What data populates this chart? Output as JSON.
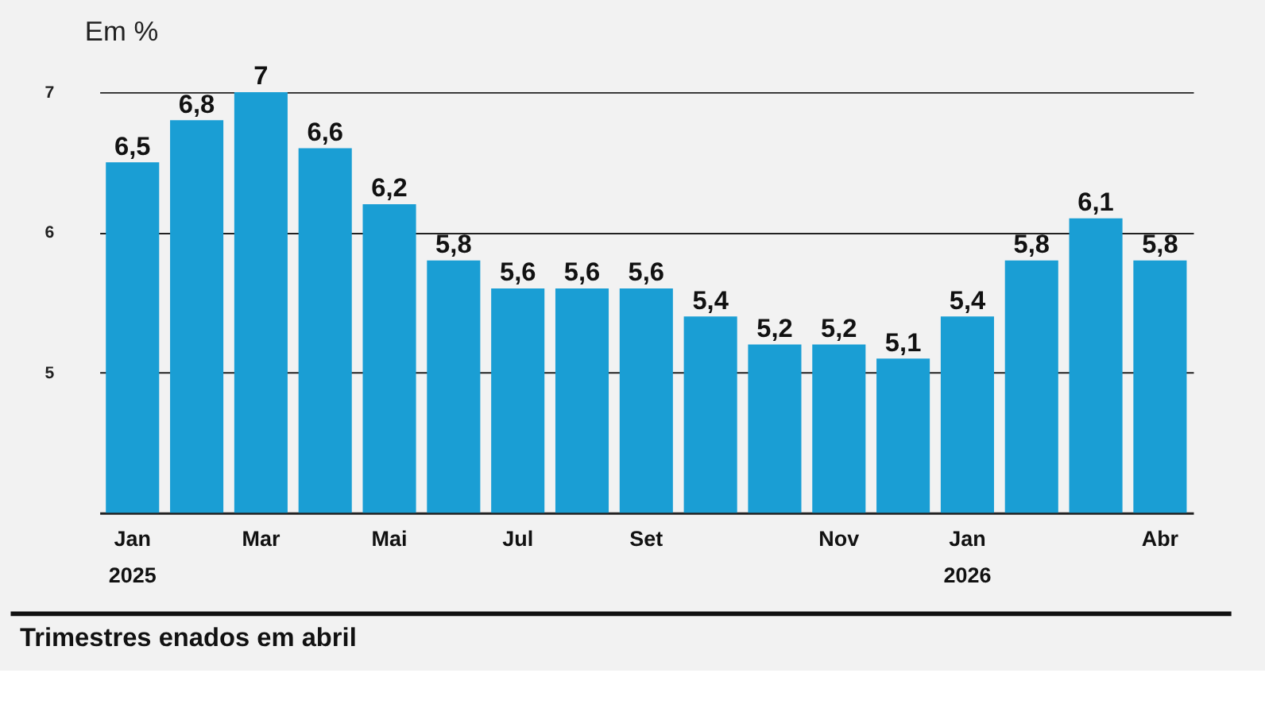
{
  "chart_data": {
    "type": "bar",
    "ylabel": "Em %",
    "categories": [
      "Jan 2025",
      null,
      "Mar",
      null,
      "Mai",
      null,
      "Jul",
      null,
      "Set",
      null,
      null,
      "Nov",
      null,
      "Jan 2026",
      null,
      null,
      "Abr"
    ],
    "values": [
      6.5,
      6.8,
      7,
      6.6,
      6.2,
      5.8,
      5.6,
      5.6,
      5.6,
      5.4,
      5.2,
      5.2,
      5.1,
      5.4,
      5.8,
      6.1,
      5.8
    ],
    "value_labels": [
      "6,5",
      "6,8",
      "7",
      "6,6",
      "6,2",
      "5,8",
      "5,6",
      "5,6",
      "5,6",
      "5,4",
      "5,2",
      "5,2",
      "5,1",
      "5,4",
      "5,8",
      "6,1",
      "5,8"
    ],
    "color": "#1a9ed4",
    "ylim": [
      4,
      7
    ],
    "yticks": [
      5,
      6,
      7
    ],
    "grid": "y",
    "annotations": [
      "Trimestres enados em abril"
    ]
  }
}
